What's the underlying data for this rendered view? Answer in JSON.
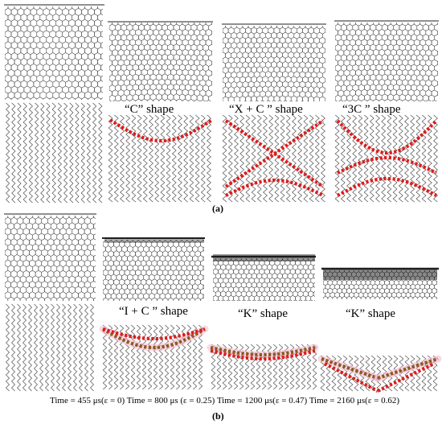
{
  "panel_a": {
    "label": "(a)",
    "shape_labels": [
      "“C”  shape",
      "“X + C ”  shape",
      "“3C ”  shape"
    ]
  },
  "panel_b": {
    "label": "(b)",
    "shape_labels": [
      "“I + C ”  shape",
      "“K”  shape",
      "“K”  shape"
    ]
  },
  "time_row": "Time = 455 μs(ε  = 0) Time = 800 μs (ε  = 0.25) Time = 1200 μs(ε  = 0.47) Time = 2160 μs(ε  = 0.62)",
  "colors": {
    "lattice": "#3a3a3a",
    "band_red": "#e01b1b",
    "band_brown": "#8a5a1e",
    "band_glow": "#f6b8d2"
  }
}
